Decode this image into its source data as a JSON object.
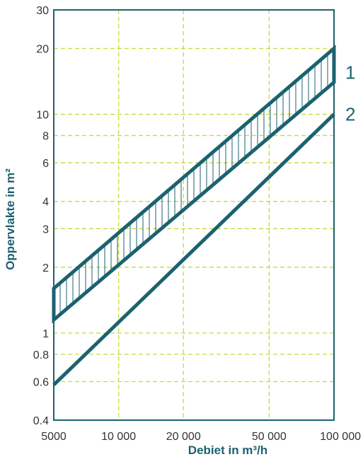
{
  "chart_data": {
    "type": "line",
    "xlabel": "Debiet in m³/h",
    "ylabel": "Oppervlakte in m²",
    "x_scale": "log",
    "y_scale": "log",
    "xlim": [
      5000,
      100000
    ],
    "ylim": [
      0.4,
      30
    ],
    "x_ticks": [
      {
        "value": 5000,
        "label": "5000"
      },
      {
        "value": 10000,
        "label": "10 000"
      },
      {
        "value": 20000,
        "label": "20 000"
      },
      {
        "value": 50000,
        "label": "50 000"
      },
      {
        "value": 100000,
        "label": "100 000"
      }
    ],
    "y_ticks": [
      {
        "value": 30,
        "label": "30"
      },
      {
        "value": 20,
        "label": "20"
      },
      {
        "value": 10,
        "label": "10"
      },
      {
        "value": 8,
        "label": "8"
      },
      {
        "value": 6,
        "label": "6"
      },
      {
        "value": 4,
        "label": "4"
      },
      {
        "value": 3,
        "label": "3"
      },
      {
        "value": 2,
        "label": "2"
      },
      {
        "value": 1,
        "label": "1"
      },
      {
        "value": 0.8,
        "label": "0.8"
      },
      {
        "value": 0.6,
        "label": "0.6"
      },
      {
        "value": 0.4,
        "label": "0.4"
      }
    ],
    "grid": true,
    "series": [
      {
        "name": "1",
        "kind": "band",
        "x": [
          5000,
          100000
        ],
        "y_upper": [
          1.6,
          20
        ],
        "y_lower": [
          1.15,
          14
        ]
      },
      {
        "name": "2",
        "kind": "line",
        "x": [
          5000,
          100000
        ],
        "y": [
          0.58,
          10
        ]
      }
    ],
    "colors": {
      "line": "#1b6270",
      "axis": "#1b6270",
      "grid": "#c9d93d",
      "text": "#1b6270",
      "accent": "#b9d232"
    }
  }
}
